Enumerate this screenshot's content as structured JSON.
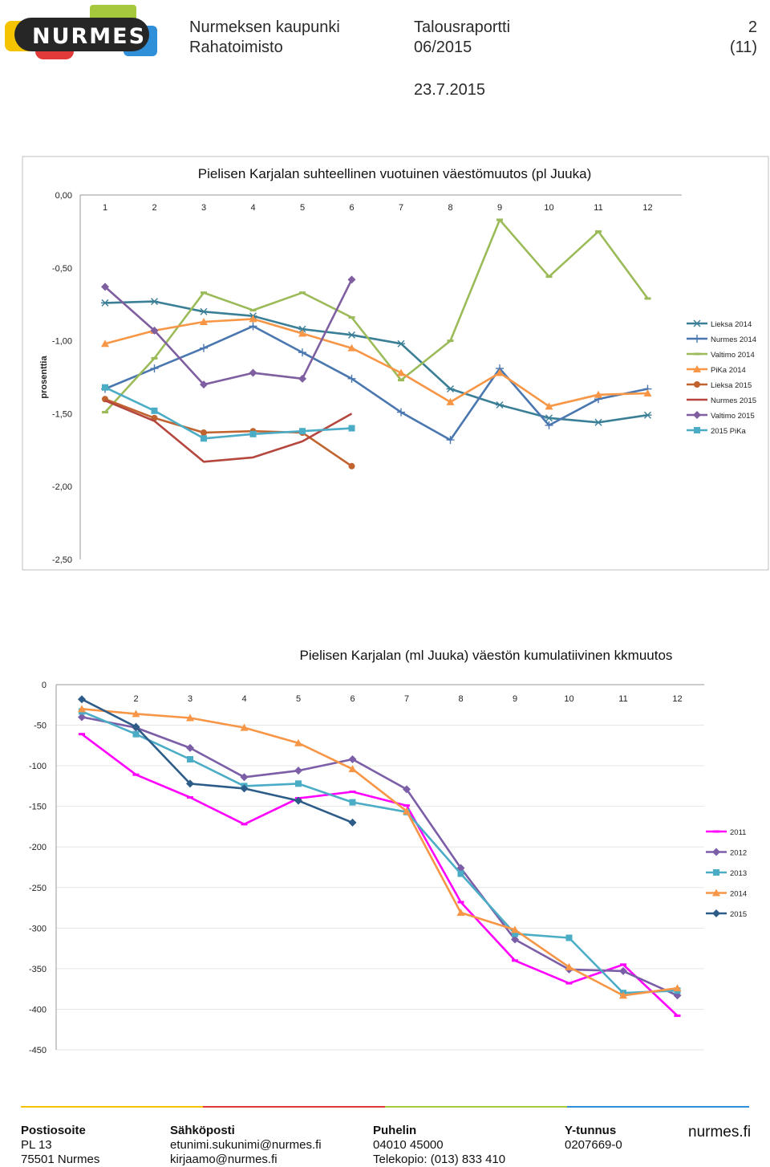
{
  "header": {
    "logo_text": "NURMES",
    "org_line1": "Nurmeksen kaupunki",
    "org_line2": "Rahatoimisto",
    "report_line1": "Talousraportti",
    "report_line2": "06/2015",
    "page_number": "2",
    "page_total": "(11)",
    "date": "23.7.2015"
  },
  "chart_data": [
    {
      "type": "line",
      "title": "Pielisen Karjalan suhteellinen vuotuinen väestömuutos (pl Juuka)",
      "ylabel": "prosenttia",
      "xlabel": "",
      "categories": [
        "1",
        "2",
        "3",
        "4",
        "5",
        "6",
        "7",
        "8",
        "9",
        "10",
        "11",
        "12"
      ],
      "y_ticks": [
        "0,00",
        "-0,50",
        "-1,00",
        "-1,50",
        "-2,00",
        "-2,50"
      ],
      "ylim": [
        -2.5,
        0
      ],
      "grid": false,
      "legend": "right",
      "series": [
        {
          "name": "Lieksa 2014",
          "color": "#3b7f97",
          "marker": "star",
          "values": [
            -0.74,
            -0.73,
            -0.8,
            -0.83,
            -0.92,
            -0.96,
            -1.02,
            -1.33,
            -1.44,
            -1.53,
            -1.56,
            -1.51
          ]
        },
        {
          "name": "Nurmes 2014",
          "color": "#4a77b0",
          "marker": "plus",
          "values": [
            -1.33,
            -1.19,
            -1.05,
            -0.9,
            -1.08,
            -1.26,
            -1.49,
            -1.68,
            -1.19,
            -1.58,
            -1.4,
            -1.33
          ]
        },
        {
          "name": "Valtimo 2014",
          "color": "#9bbb59",
          "marker": "dash",
          "values": [
            -1.49,
            -1.12,
            -0.67,
            -0.79,
            -0.67,
            -0.84,
            -1.27,
            -1.0,
            -0.17,
            -0.56,
            -0.25,
            -0.71
          ]
        },
        {
          "name": "PiKa 2014",
          "color": "#f79646",
          "marker": "triangle",
          "values": [
            -1.02,
            -0.93,
            -0.87,
            -0.85,
            -0.95,
            -1.05,
            -1.22,
            -1.42,
            -1.22,
            -1.45,
            -1.37,
            -1.36
          ]
        },
        {
          "name": "Lieksa 2015",
          "color": "#c0632e",
          "marker": "circle",
          "values": [
            -1.4,
            -1.53,
            -1.63,
            -1.62,
            -1.63,
            -1.86,
            null,
            null,
            null,
            null,
            null,
            null
          ]
        },
        {
          "name": "Nurmes 2015",
          "color": "#b5473e",
          "marker": "none",
          "values": [
            -1.41,
            -1.55,
            -1.83,
            -1.8,
            -1.69,
            -1.5,
            null,
            null,
            null,
            null,
            null,
            null
          ]
        },
        {
          "name": "Valtimo 2015",
          "color": "#7f5fa0",
          "marker": "diamond",
          "values": [
            -0.63,
            -0.93,
            -1.3,
            -1.22,
            -1.26,
            -0.58,
            null,
            null,
            null,
            null,
            null,
            null
          ]
        },
        {
          "name": "2015 PiKa",
          "color": "#4bacc6",
          "marker": "square",
          "values": [
            -1.32,
            -1.48,
            -1.67,
            -1.64,
            -1.62,
            -1.6,
            null,
            null,
            null,
            null,
            null,
            null
          ]
        }
      ]
    },
    {
      "type": "line",
      "title": "Pielisen Karjalan (ml Juuka) väestön kumulatiivinen kkmuutos",
      "ylabel": "",
      "xlabel": "",
      "categories": [
        "1",
        "2",
        "3",
        "4",
        "5",
        "6",
        "7",
        "8",
        "9",
        "10",
        "11",
        "12"
      ],
      "x_tick_labels": [
        "",
        "2",
        "3",
        "4",
        "5",
        "6",
        "7",
        "8",
        "9",
        "10",
        "11",
        "12"
      ],
      "y_ticks": [
        "0",
        "-50",
        "-100",
        "-150",
        "-200",
        "-250",
        "-300",
        "-350",
        "-400",
        "-450"
      ],
      "ylim": [
        -450,
        0
      ],
      "grid": false,
      "legend": "right",
      "series": [
        {
          "name": "2011",
          "color": "#ff00ff",
          "marker": "dash",
          "values": [
            -61,
            -111,
            -139,
            -172,
            -140,
            -132,
            -149,
            -268,
            -340,
            -368,
            -345,
            -408
          ]
        },
        {
          "name": "2012",
          "color": "#7b5ea7",
          "marker": "diamond",
          "values": [
            -40,
            -53,
            -78,
            -114,
            -106,
            -92,
            -129,
            -226,
            -314,
            -351,
            -353,
            -383
          ]
        },
        {
          "name": "2013",
          "color": "#4bacc6",
          "marker": "square",
          "values": [
            -33,
            -61,
            -92,
            -125,
            -122,
            -145,
            -157,
            -233,
            -307,
            -312,
            -380,
            -377
          ]
        },
        {
          "name": "2014",
          "color": "#f79646",
          "marker": "triangle",
          "values": [
            -30,
            -36,
            -41,
            -53,
            -72,
            -104,
            -156,
            -281,
            -302,
            -348,
            -383,
            -374
          ]
        },
        {
          "name": "2015",
          "color": "#2d5c88",
          "marker": "diamond",
          "values": [
            -18,
            -52,
            -122,
            -128,
            -143,
            -170,
            null,
            null,
            null,
            null,
            null,
            null
          ]
        }
      ]
    }
  ],
  "footer": {
    "address_label": "Postiosoite",
    "address_line1": "PL 13",
    "address_line2": "75501 Nurmes",
    "email_label": "Sähköposti",
    "email_line1": "etunimi.sukunimi@nurmes.fi",
    "email_line2": "kirjaamo@nurmes.fi",
    "phone_label": "Puhelin",
    "phone_line1": "04010 45000",
    "phone_line2": "Telekopio: (013) 833 410",
    "ytunnus_label": "Y-tunnus",
    "ytunnus_value": "0207669-0",
    "website": "nurmes.fi"
  }
}
